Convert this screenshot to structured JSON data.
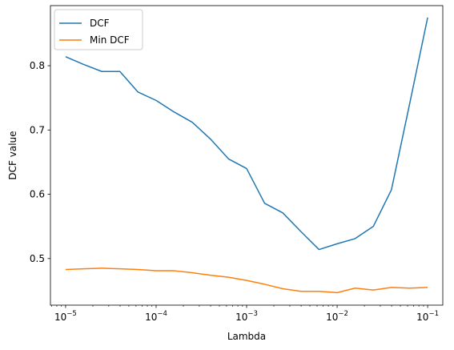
{
  "chart_data": {
    "type": "line",
    "xlabel": "Lambda",
    "ylabel": "DCF value",
    "xscale": "log",
    "xlim": [
      6.8e-06,
      0.147
    ],
    "ylim": [
      0.4275,
      0.8935
    ],
    "x_ticks": [
      {
        "value": 1e-05,
        "base": "10",
        "exp": "−5"
      },
      {
        "value": 0.0001,
        "base": "10",
        "exp": "−4"
      },
      {
        "value": 0.001,
        "base": "10",
        "exp": "−3"
      },
      {
        "value": 0.01,
        "base": "10",
        "exp": "−2"
      },
      {
        "value": 0.1,
        "base": "10",
        "exp": "−1"
      }
    ],
    "y_ticks": [
      {
        "value": 0.5,
        "label": "0.5"
      },
      {
        "value": 0.6,
        "label": "0.6"
      },
      {
        "value": 0.7,
        "label": "0.7"
      },
      {
        "value": 0.8,
        "label": "0.8"
      }
    ],
    "grid": false,
    "legend": "top-left",
    "x": [
      1e-05,
      1.58e-05,
      2.51e-05,
      3.98e-05,
      6.31e-05,
      0.0001,
      0.000158,
      0.000251,
      0.000398,
      0.000631,
      0.001,
      0.00158,
      0.00251,
      0.00398,
      0.00631,
      0.01,
      0.0158,
      0.0251,
      0.0398,
      0.0631,
      0.1
    ],
    "series": [
      {
        "name": "DCF",
        "color": "#1f77b4",
        "values": [
          0.814,
          0.802,
          0.791,
          0.791,
          0.759,
          0.746,
          0.728,
          0.712,
          0.686,
          0.655,
          0.64,
          0.586,
          0.571,
          0.542,
          0.514,
          0.523,
          0.531,
          0.55,
          0.607,
          0.74,
          0.875
        ]
      },
      {
        "name": "Min DCF",
        "color": "#ff7f0e",
        "values": [
          0.483,
          0.484,
          0.485,
          0.484,
          0.483,
          0.481,
          0.481,
          0.478,
          0.474,
          0.471,
          0.466,
          0.46,
          0.453,
          0.449,
          0.449,
          0.447,
          0.454,
          0.451,
          0.455,
          0.454,
          0.455
        ]
      }
    ]
  }
}
